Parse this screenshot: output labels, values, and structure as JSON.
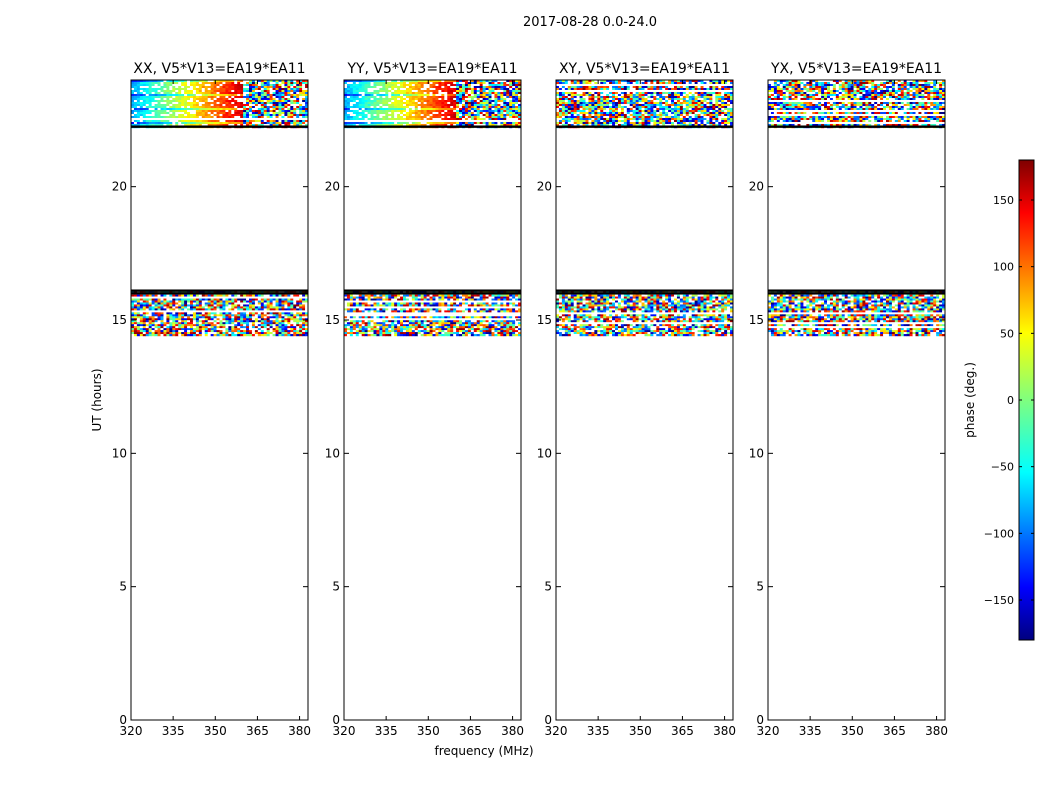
{
  "figure": {
    "suptitle": "2017-08-28 0.0-24.0",
    "xlabel": "frequency (MHz)",
    "ylabel": "UT (hours)",
    "colorbar_label": "phase (deg.)"
  },
  "chart_data": {
    "type": "heatmap",
    "panels": [
      {
        "title": "XX, V5*V13=EA19*EA11",
        "pattern": "phase-gradient"
      },
      {
        "title": "YY, V5*V13=EA19*EA11",
        "pattern": "phase-gradient"
      },
      {
        "title": "XY, V5*V13=EA19*EA11",
        "pattern": "noise"
      },
      {
        "title": "YX, V5*V13=EA19*EA11",
        "pattern": "noise"
      }
    ],
    "x_ticks": [
      320,
      335,
      350,
      365,
      380
    ],
    "xlim": [
      320,
      383
    ],
    "y_ticks": [
      0,
      5,
      10,
      15,
      20
    ],
    "ylim": [
      0,
      24
    ],
    "data_bands_ut": [
      [
        14.4,
        16.1
      ],
      [
        22.2,
        24.0
      ]
    ],
    "gap_lines_ut": [
      16.0,
      16.1,
      22.25
    ],
    "colorbar": {
      "ticks": [
        150,
        100,
        50,
        0,
        -50,
        -100,
        -150
      ],
      "tick_labels": [
        "150",
        "100",
        "50",
        "0",
        "−50",
        "−100",
        "−150"
      ],
      "range": [
        -180,
        180
      ],
      "colormap": "jet"
    }
  }
}
